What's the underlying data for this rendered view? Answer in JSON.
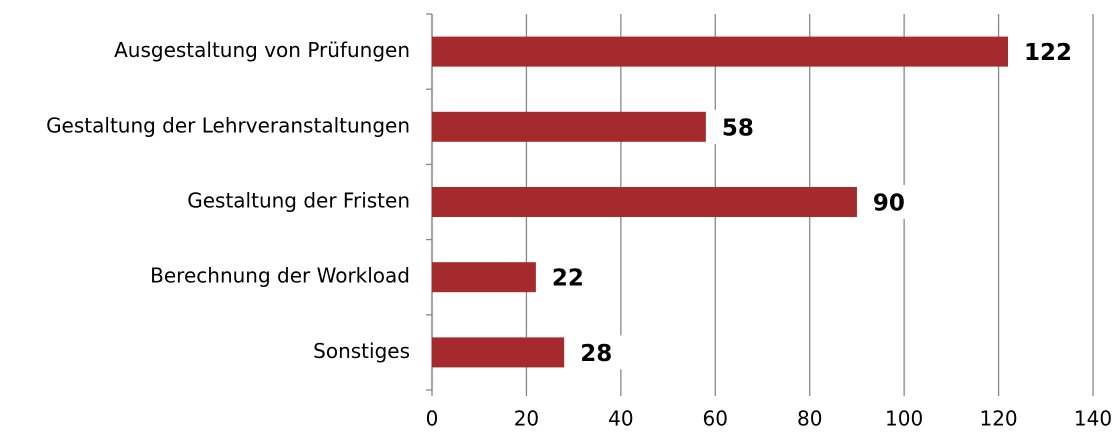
{
  "chart_data": {
    "type": "bar",
    "orientation": "horizontal",
    "categories": [
      "Ausgestaltung von Prüfungen",
      "Gestaltung der Lehrveranstaltungen",
      "Gestaltung der Fristen",
      "Berechnung der Workload",
      "Sonstiges"
    ],
    "values": [
      122,
      58,
      90,
      22,
      28
    ],
    "color": "#a52a2e",
    "xlim": [
      0,
      140
    ],
    "xticks": [
      0,
      20,
      40,
      60,
      80,
      100,
      120,
      140
    ],
    "grid": true
  }
}
